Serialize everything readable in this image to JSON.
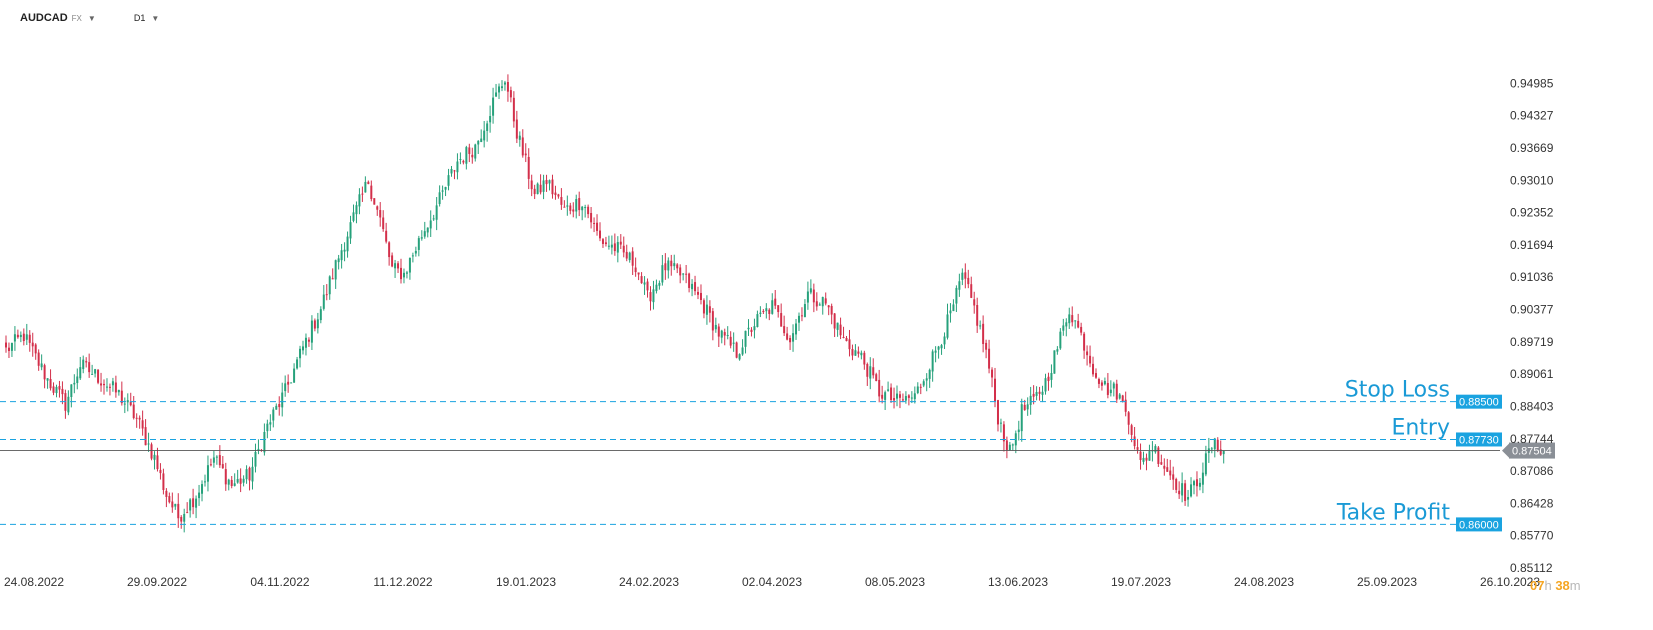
{
  "toolbar": {
    "symbol": "AUDCAD",
    "market": "FX",
    "timeframe": "D1"
  },
  "timer": {
    "hours": "07",
    "h_unit": "h",
    "minutes": "38",
    "m_unit": "m"
  },
  "colors": {
    "bull": "#26a17b",
    "bear": "#d32f4a",
    "level_line": "#1aa3e0",
    "badge": "#1aa3e0",
    "current_badge": "#8a8f96"
  },
  "chart_data": {
    "type": "candlestick",
    "title": "",
    "xlabel": "",
    "ylabel": "",
    "ylim": [
      0.85112,
      0.95643
    ],
    "grid": false,
    "y_ticks": [
      "0.94985",
      "0.94327",
      "0.93669",
      "0.93010",
      "0.92352",
      "0.91694",
      "0.91036",
      "0.90377",
      "0.89719",
      "0.89061",
      "0.88403",
      "0.87744",
      "0.87086",
      "0.86428",
      "0.85770",
      "0.85112"
    ],
    "x_ticks": [
      "24.08.2022",
      "29.09.2022",
      "04.11.2022",
      "11.12.2022",
      "19.01.2023",
      "24.02.2023",
      "02.04.2023",
      "08.05.2023",
      "13.06.2023",
      "19.07.2023",
      "24.08.2023",
      "25.09.2023",
      "26.10.2023"
    ],
    "current_price": "0.87504",
    "levels": [
      {
        "name": "Stop Loss",
        "value": "0.88500"
      },
      {
        "name": "Entry",
        "value": "0.87730"
      },
      {
        "name": "Take Profit",
        "value": "0.86000"
      }
    ],
    "close_anchors": [
      [
        0,
        0.8955
      ],
      [
        6,
        0.8985
      ],
      [
        14,
        0.8895
      ],
      [
        20,
        0.8845
      ],
      [
        25,
        0.8925
      ],
      [
        30,
        0.8905
      ],
      [
        38,
        0.8865
      ],
      [
        44,
        0.8815
      ],
      [
        50,
        0.8735
      ],
      [
        54,
        0.866
      ],
      [
        58,
        0.8615
      ],
      [
        64,
        0.866
      ],
      [
        70,
        0.8735
      ],
      [
        76,
        0.868
      ],
      [
        82,
        0.87
      ],
      [
        88,
        0.88
      ],
      [
        94,
        0.887
      ],
      [
        100,
        0.896
      ],
      [
        106,
        0.904
      ],
      [
        112,
        0.9145
      ],
      [
        118,
        0.924
      ],
      [
        122,
        0.93
      ],
      [
        126,
        0.922
      ],
      [
        130,
        0.912
      ],
      [
        134,
        0.911
      ],
      [
        140,
        0.919
      ],
      [
        146,
        0.926
      ],
      [
        152,
        0.934
      ],
      [
        158,
        0.937
      ],
      [
        164,
        0.946
      ],
      [
        168,
        0.951
      ],
      [
        172,
        0.94
      ],
      [
        178,
        0.927
      ],
      [
        182,
        0.93
      ],
      [
        188,
        0.924
      ],
      [
        194,
        0.926
      ],
      [
        200,
        0.918
      ],
      [
        206,
        0.916
      ],
      [
        212,
        0.913
      ],
      [
        216,
        0.906
      ],
      [
        222,
        0.9125
      ],
      [
        228,
        0.9105
      ],
      [
        234,
        0.9055
      ],
      [
        240,
        0.899
      ],
      [
        246,
        0.895
      ],
      [
        252,
        0.901
      ],
      [
        258,
        0.9045
      ],
      [
        264,
        0.898
      ],
      [
        270,
        0.907
      ],
      [
        276,
        0.905
      ],
      [
        282,
        0.8975
      ],
      [
        288,
        0.894
      ],
      [
        294,
        0.887
      ],
      [
        300,
        0.885
      ],
      [
        306,
        0.886
      ],
      [
        312,
        0.894
      ],
      [
        318,
        0.9025
      ],
      [
        322,
        0.9105
      ],
      [
        326,
        0.904
      ],
      [
        330,
        0.895
      ],
      [
        334,
        0.882
      ],
      [
        338,
        0.8745
      ],
      [
        342,
        0.883
      ],
      [
        346,
        0.885
      ],
      [
        350,
        0.889
      ],
      [
        354,
        0.896
      ],
      [
        358,
        0.904
      ],
      [
        362,
        0.8985
      ],
      [
        366,
        0.892
      ],
      [
        370,
        0.888
      ],
      [
        374,
        0.887
      ],
      [
        378,
        0.882
      ],
      [
        382,
        0.872
      ],
      [
        386,
        0.876
      ],
      [
        390,
        0.872
      ],
      [
        394,
        0.8685
      ],
      [
        398,
        0.8655
      ],
      [
        402,
        0.87
      ],
      [
        406,
        0.876
      ],
      [
        410,
        0.8755
      ]
    ]
  }
}
